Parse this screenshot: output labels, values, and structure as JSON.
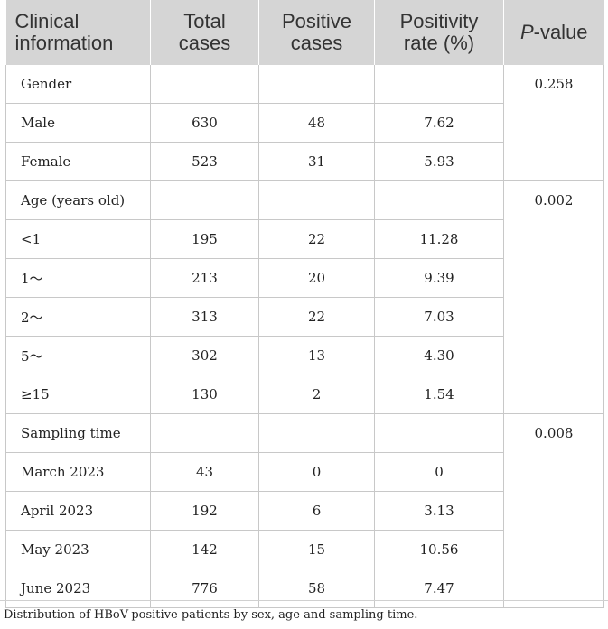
{
  "header": {
    "col1": [
      "Clinical",
      "information"
    ],
    "col2": [
      "Total",
      "cases"
    ],
    "col3": [
      "Positive",
      "cases"
    ],
    "col4": [
      "Positivity",
      "rate (%)"
    ],
    "col5": {
      "italic": "P",
      "rest": "-value"
    }
  },
  "groups": [
    {
      "label": "Gender",
      "p_value": "0.258",
      "rows": [
        {
          "label": "Male",
          "total": "630",
          "positive": "48",
          "rate": "7.62"
        },
        {
          "label": "Female",
          "total": "523",
          "positive": "31",
          "rate": "5.93"
        }
      ]
    },
    {
      "label": "Age (years old)",
      "p_value": "0.002",
      "rows": [
        {
          "label": "<1",
          "total": "195",
          "positive": "22",
          "rate": "11.28"
        },
        {
          "label": "1～",
          "total": "213",
          "positive": "20",
          "rate": "9.39"
        },
        {
          "label": "2～",
          "total": "313",
          "positive": "22",
          "rate": "7.03"
        },
        {
          "label": "5～",
          "total": "302",
          "positive": "13",
          "rate": "4.30"
        },
        {
          "label": "≥15",
          "total": "130",
          "positive": "2",
          "rate": "1.54"
        }
      ]
    },
    {
      "label": "Sampling time",
      "p_value": "0.008",
      "rows": [
        {
          "label": "March 2023",
          "total": "43",
          "positive": "0",
          "rate": "0"
        },
        {
          "label": "April 2023",
          "total": "192",
          "positive": "6",
          "rate": "3.13"
        },
        {
          "label": "May 2023",
          "total": "142",
          "positive": "15",
          "rate": "10.56"
        },
        {
          "label": "June 2023",
          "total": "776",
          "positive": "58",
          "rate": "7.47"
        }
      ]
    }
  ],
  "caption": "Distribution of HBoV-positive patients by sex, age and sampling time."
}
